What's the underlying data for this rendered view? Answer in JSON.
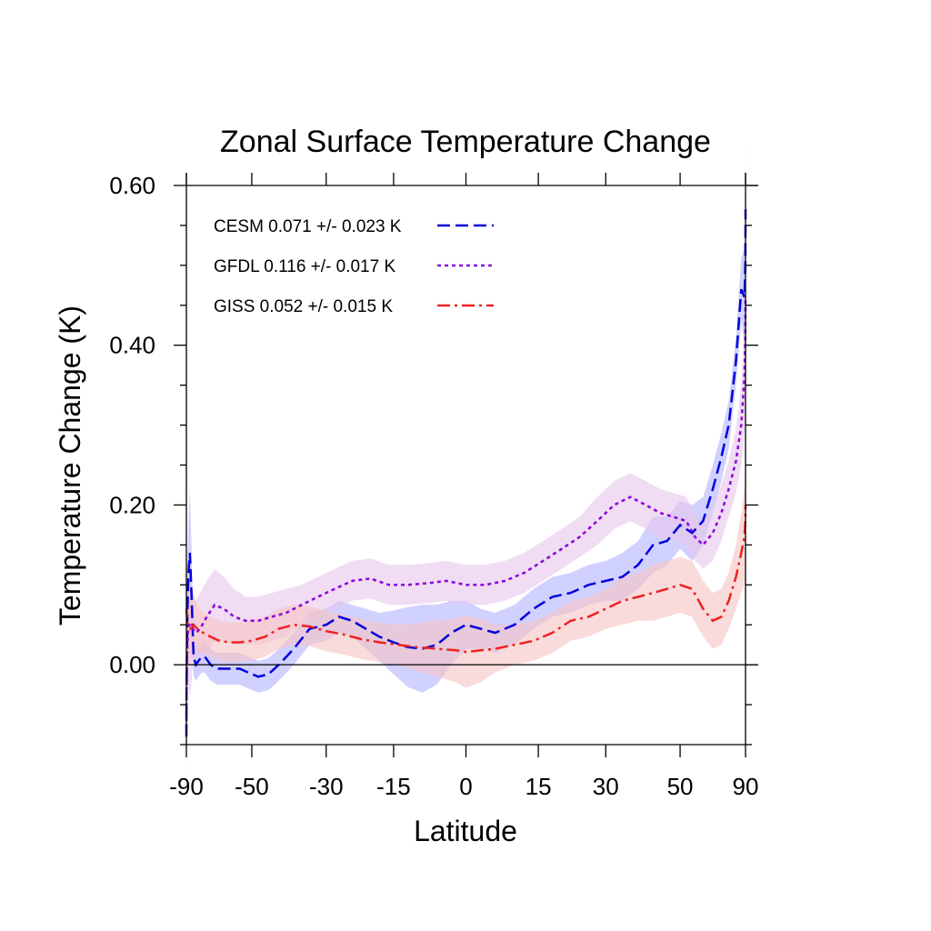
{
  "chart_data": {
    "type": "line",
    "title": "Zonal Surface Temperature Change",
    "xlabel": "Latitude",
    "ylabel": "Temperature Change (K)",
    "x_tick_labels": [
      "-90",
      "-50",
      "-30",
      "-15",
      "0",
      "15",
      "30",
      "50",
      "90"
    ],
    "x_tick_lat": [
      -90,
      -50,
      -30,
      -15,
      0,
      15,
      30,
      50,
      90
    ],
    "y_tick_labels": [
      "0.00",
      "0.20",
      "0.40",
      "0.60"
    ],
    "y_tick_values": [
      0.0,
      0.2,
      0.4,
      0.6
    ],
    "ylim": [
      -0.1,
      0.6
    ],
    "x_axis": "sine of latitude",
    "zero_line": true,
    "legend_position": "top-left",
    "series": [
      {
        "name": "CESM 0.071 +/- 0.023 K",
        "color": "#0000dd",
        "band_color": "#b3b3ff",
        "dash": "dashed",
        "x": [
          -90,
          -88,
          -86,
          -85,
          -83,
          -81,
          -79,
          -77,
          -75,
          -73,
          -71,
          -69,
          -66,
          -63,
          -60,
          -57,
          -54,
          -51,
          -48,
          -45,
          -42,
          -38,
          -34,
          -30,
          -27,
          -24,
          -21,
          -18,
          -15,
          -12,
          -9,
          -6,
          -3,
          0,
          3,
          6,
          10,
          14,
          18,
          22,
          26,
          30,
          34,
          38,
          42,
          46,
          50,
          54,
          58,
          62,
          66,
          70,
          75,
          80,
          85,
          88,
          90
        ],
        "y": [
          -0.09,
          -0.03,
          0.02,
          0.07,
          0.115,
          0.14,
          0.09,
          0.01,
          0.0,
          0.005,
          0.01,
          0.01,
          0.0,
          -0.005,
          -0.005,
          -0.005,
          -0.005,
          -0.01,
          -0.015,
          -0.012,
          0.0,
          0.02,
          0.045,
          0.05,
          0.06,
          0.055,
          0.045,
          0.035,
          0.028,
          0.022,
          0.02,
          0.025,
          0.04,
          0.05,
          0.045,
          0.04,
          0.05,
          0.07,
          0.085,
          0.09,
          0.1,
          0.105,
          0.11,
          0.125,
          0.15,
          0.155,
          0.175,
          0.165,
          0.18,
          0.22,
          0.26,
          0.3,
          0.38,
          0.47,
          0.46,
          0.5,
          0.57
        ],
        "band_halfwidth": [
          0.05,
          0.05,
          0.05,
          0.05,
          0.06,
          0.08,
          0.06,
          0.025,
          0.02,
          0.02,
          0.02,
          0.02,
          0.02,
          0.02,
          0.02,
          0.02,
          0.02,
          0.02,
          0.02,
          0.02,
          0.02,
          0.02,
          0.02,
          0.02,
          0.02,
          0.02,
          0.025,
          0.03,
          0.04,
          0.05,
          0.055,
          0.05,
          0.04,
          0.03,
          0.025,
          0.025,
          0.025,
          0.025,
          0.025,
          0.025,
          0.025,
          0.025,
          0.03,
          0.03,
          0.035,
          0.03,
          0.03,
          0.035,
          0.03,
          0.03,
          0.03,
          0.03,
          0.03,
          0.04,
          0.06,
          0.08,
          0.1
        ]
      },
      {
        "name": "GFDL 0.116 +/- 0.017 K",
        "color": "#8c00dc",
        "band_color": "#e6c5eb",
        "dash": "dotted",
        "x": [
          -90,
          -88,
          -86,
          -84,
          -82,
          -80,
          -78,
          -75,
          -72,
          -68,
          -64,
          -60,
          -56,
          -52,
          -48,
          -44,
          -40,
          -36,
          -32,
          -28,
          -24,
          -20,
          -16,
          -12,
          -8,
          -4,
          0,
          4,
          8,
          12,
          16,
          20,
          24,
          28,
          32,
          36,
          40,
          44,
          48,
          52,
          55,
          58,
          62,
          66,
          70,
          75,
          80,
          85,
          88,
          90
        ],
        "y": [
          -0.08,
          -0.04,
          0.01,
          0.04,
          0.05,
          0.05,
          0.045,
          0.04,
          0.045,
          0.06,
          0.075,
          0.07,
          0.06,
          0.055,
          0.055,
          0.06,
          0.065,
          0.075,
          0.085,
          0.095,
          0.105,
          0.108,
          0.1,
          0.1,
          0.102,
          0.105,
          0.1,
          0.1,
          0.105,
          0.115,
          0.13,
          0.145,
          0.16,
          0.18,
          0.2,
          0.21,
          0.2,
          0.19,
          0.185,
          0.18,
          0.16,
          0.15,
          0.165,
          0.19,
          0.22,
          0.255,
          0.3,
          0.36,
          0.41,
          0.46
        ],
        "band_halfwidth": [
          0.06,
          0.06,
          0.06,
          0.07,
          0.08,
          0.09,
          0.05,
          0.04,
          0.045,
          0.045,
          0.045,
          0.04,
          0.035,
          0.03,
          0.03,
          0.03,
          0.03,
          0.025,
          0.025,
          0.025,
          0.025,
          0.025,
          0.025,
          0.025,
          0.025,
          0.025,
          0.025,
          0.025,
          0.025,
          0.025,
          0.025,
          0.025,
          0.025,
          0.03,
          0.03,
          0.03,
          0.03,
          0.03,
          0.03,
          0.03,
          0.03,
          0.03,
          0.035,
          0.035,
          0.035,
          0.04,
          0.05,
          0.07,
          0.09,
          0.1
        ]
      },
      {
        "name": "GISS 0.052 +/- 0.015 K",
        "color": "#ee2222",
        "band_color": "#f7c3c3",
        "dash": "dashdot",
        "x": [
          -90,
          -88,
          -86,
          -84,
          -82,
          -80,
          -77,
          -74,
          -70,
          -66,
          -62,
          -58,
          -54,
          -50,
          -46,
          -42,
          -38,
          -34,
          -30,
          -26,
          -22,
          -18,
          -14,
          -10,
          -6,
          -2,
          0,
          3,
          6,
          10,
          14,
          18,
          22,
          26,
          30,
          34,
          38,
          42,
          46,
          50,
          54,
          58,
          62,
          66,
          70,
          75,
          80,
          85,
          88,
          90
        ],
        "y": [
          0.065,
          0.07,
          0.06,
          0.05,
          0.045,
          0.045,
          0.05,
          0.045,
          0.04,
          0.035,
          0.03,
          0.028,
          0.028,
          0.03,
          0.035,
          0.045,
          0.05,
          0.048,
          0.042,
          0.038,
          0.032,
          0.028,
          0.025,
          0.022,
          0.02,
          0.018,
          0.016,
          0.018,
          0.02,
          0.025,
          0.03,
          0.04,
          0.055,
          0.06,
          0.07,
          0.08,
          0.085,
          0.09,
          0.095,
          0.1,
          0.095,
          0.07,
          0.055,
          0.06,
          0.08,
          0.11,
          0.14,
          0.16,
          0.18,
          0.2
        ],
        "band_halfwidth": [
          0.06,
          0.06,
          0.06,
          0.05,
          0.045,
          0.04,
          0.035,
          0.03,
          0.025,
          0.025,
          0.025,
          0.025,
          0.025,
          0.025,
          0.025,
          0.025,
          0.025,
          0.025,
          0.025,
          0.025,
          0.025,
          0.025,
          0.025,
          0.03,
          0.035,
          0.04,
          0.045,
          0.04,
          0.03,
          0.025,
          0.025,
          0.025,
          0.025,
          0.025,
          0.025,
          0.03,
          0.03,
          0.035,
          0.035,
          0.035,
          0.035,
          0.035,
          0.035,
          0.035,
          0.035,
          0.04,
          0.05,
          0.06,
          0.06,
          0.06
        ]
      }
    ]
  }
}
